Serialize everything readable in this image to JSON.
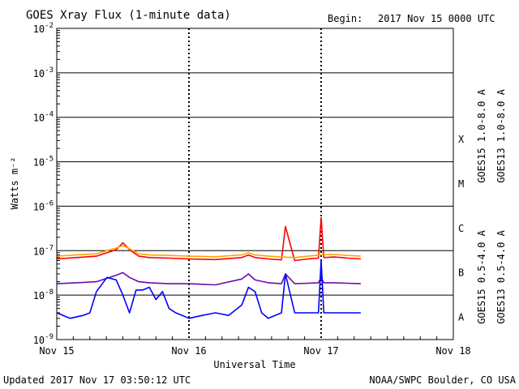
{
  "header": {
    "title": "GOES Xray Flux (1-minute data)",
    "begin_label": "Begin:",
    "begin_value": "2017 Nov 15 0000 UTC"
  },
  "footer": {
    "updated": "Updated 2017 Nov 17 03:50:12 UTC",
    "credit": "NOAA/SWPC Boulder, CO USA"
  },
  "colors": {
    "goes15_long": "#ff0000",
    "goes13_long": "#ffa500",
    "goes15_short": "#0000ff",
    "goes13_short": "#6a0dad",
    "grid": "#000000"
  },
  "chart_data": {
    "type": "line",
    "title": "GOES Xray Flux (1-minute data)",
    "xlabel": "Universal Time",
    "ylabel": "Watts m⁻²",
    "yscale": "log",
    "ylim": [
      1e-09,
      0.01
    ],
    "xlim": [
      0,
      3
    ],
    "x_ticks": [
      {
        "x": 0,
        "label": "Nov 15"
      },
      {
        "x": 1,
        "label": "Nov 16"
      },
      {
        "x": 2,
        "label": "Nov 17"
      },
      {
        "x": 3,
        "label": "Nov 18"
      }
    ],
    "y_ticks": [
      {
        "exp": -2,
        "label": "10",
        "sup": "-2"
      },
      {
        "exp": -3,
        "label": "10",
        "sup": "-3"
      },
      {
        "exp": -4,
        "label": "10",
        "sup": "-4"
      },
      {
        "exp": -5,
        "label": "10",
        "sup": "-5"
      },
      {
        "exp": -6,
        "label": "10",
        "sup": "-6"
      },
      {
        "exp": -7,
        "label": "10",
        "sup": "-7"
      },
      {
        "exp": -8,
        "label": "10",
        "sup": "-8"
      },
      {
        "exp": -9,
        "label": "10",
        "sup": "-9"
      }
    ],
    "flare_classes": [
      {
        "label": "X",
        "exp": -4
      },
      {
        "label": "M",
        "exp": -5
      },
      {
        "label": "C",
        "exp": -6
      },
      {
        "label": "B",
        "exp": -7
      },
      {
        "label": "A",
        "exp": -8
      }
    ],
    "legend_long": [
      "GOES15 1.0-8.0 A",
      "GOES13 1.0-8.0 A"
    ],
    "legend_short": [
      "GOES15 0.5-4.0 A",
      "GOES13 0.5-4.0 A"
    ],
    "grid": true,
    "x_units": "days since Nov 15 00:00 UTC",
    "series": [
      {
        "name": "GOES15 1.0-8.0 A",
        "color": "#ff0000",
        "x": [
          0,
          0.15,
          0.3,
          0.45,
          0.5,
          0.55,
          0.62,
          0.7,
          0.85,
          1.0,
          1.2,
          1.4,
          1.45,
          1.5,
          1.6,
          1.7,
          1.73,
          1.8,
          1.9,
          1.98,
          2.0,
          2.02,
          2.1,
          2.2,
          2.3
        ],
        "y": [
          6.5e-08,
          7e-08,
          7.5e-08,
          1.05e-07,
          1.5e-07,
          1.05e-07,
          7.5e-08,
          7e-08,
          6.8e-08,
          6.5e-08,
          6.3e-08,
          7e-08,
          8e-08,
          7e-08,
          6.5e-08,
          6.2e-08,
          3.5e-07,
          6e-08,
          6.5e-08,
          6.8e-08,
          5.5e-07,
          7e-08,
          7.2e-08,
          6.8e-08,
          6.5e-08
        ]
      },
      {
        "name": "GOES13 1.0-8.0 A",
        "color": "#ffa500",
        "x": [
          0,
          0.15,
          0.3,
          0.45,
          0.5,
          0.55,
          0.62,
          0.7,
          0.85,
          1.0,
          1.2,
          1.4,
          1.45,
          1.5,
          1.6,
          1.7,
          1.8,
          1.9,
          2.0,
          2.1,
          2.2,
          2.3
        ],
        "y": [
          7.5e-08,
          8e-08,
          8.5e-08,
          1.15e-07,
          1.3e-07,
          1.1e-07,
          8.5e-08,
          8e-08,
          7.8e-08,
          7.5e-08,
          7.3e-08,
          8e-08,
          9e-08,
          8e-08,
          7.5e-08,
          7.2e-08,
          7e-08,
          7.5e-08,
          8e-08,
          8.2e-08,
          7.8e-08,
          7.5e-08
        ]
      },
      {
        "name": "GOES13 0.5-4.0 A",
        "color": "#6a0dad",
        "x": [
          0,
          0.15,
          0.3,
          0.45,
          0.5,
          0.55,
          0.62,
          0.7,
          0.85,
          1.0,
          1.2,
          1.4,
          1.45,
          1.5,
          1.6,
          1.7,
          1.73,
          1.8,
          1.9,
          1.98,
          2.0,
          2.02,
          2.1,
          2.2,
          2.3
        ],
        "y": [
          1.8e-08,
          1.9e-08,
          2e-08,
          2.8e-08,
          3.2e-08,
          2.5e-08,
          2e-08,
          1.9e-08,
          1.8e-08,
          1.8e-08,
          1.7e-08,
          2.3e-08,
          3e-08,
          2.2e-08,
          1.9e-08,
          1.8e-08,
          3e-08,
          1.8e-08,
          1.85e-08,
          1.9e-08,
          2.5e-08,
          1.9e-08,
          1.9e-08,
          1.85e-08,
          1.8e-08
        ]
      },
      {
        "name": "GOES15 0.5-4.0 A",
        "color": "#0000ff",
        "x": [
          0,
          0.1,
          0.2,
          0.25,
          0.3,
          0.38,
          0.45,
          0.5,
          0.55,
          0.6,
          0.65,
          0.7,
          0.75,
          0.8,
          0.85,
          0.9,
          0.95,
          1.0,
          1.1,
          1.2,
          1.3,
          1.4,
          1.45,
          1.5,
          1.55,
          1.6,
          1.7,
          1.73,
          1.8,
          1.9,
          1.98,
          2.0,
          2.02,
          2.1,
          2.2,
          2.3
        ],
        "y": [
          4e-09,
          3e-09,
          3.5e-09,
          4e-09,
          1.2e-08,
          2.5e-08,
          2.2e-08,
          1e-08,
          4e-09,
          1.3e-08,
          1.3e-08,
          1.5e-08,
          8e-09,
          1.2e-08,
          5e-09,
          4e-09,
          3.5e-09,
          3e-09,
          3.5e-09,
          4e-09,
          3.5e-09,
          6e-09,
          1.5e-08,
          1.2e-08,
          4e-09,
          3e-09,
          4e-09,
          3e-08,
          4e-09,
          4e-09,
          4e-09,
          6e-08,
          4e-09,
          4e-09,
          4e-09,
          4e-09
        ]
      }
    ]
  }
}
